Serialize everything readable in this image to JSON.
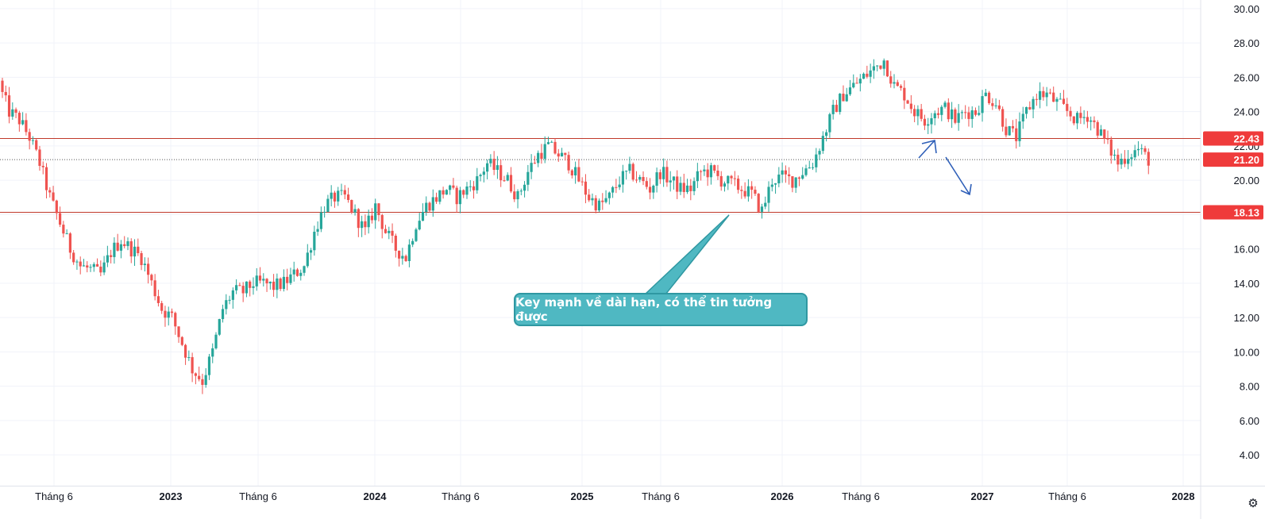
{
  "chart_data": {
    "type": "candlestick",
    "y_axis": {
      "ticks": [
        "4.00",
        "6.00",
        "8.00",
        "10.00",
        "12.00",
        "14.00",
        "16.00",
        "18.00",
        "20.00",
        "22.00",
        "24.00",
        "26.00",
        "28.00",
        "30.00"
      ],
      "range": [
        2.2,
        30.5
      ]
    },
    "x_axis": {
      "ticks": [
        {
          "label": "Tháng 6",
          "bold": false
        },
        {
          "label": "2023",
          "bold": true
        },
        {
          "label": "Tháng 6",
          "bold": false
        },
        {
          "label": "2024",
          "bold": true
        },
        {
          "label": "Tháng 6",
          "bold": false
        },
        {
          "label": "2025",
          "bold": true
        },
        {
          "label": "Tháng 6",
          "bold": false
        },
        {
          "label": "2026",
          "bold": true
        },
        {
          "label": "Tháng 6",
          "bold": false
        },
        {
          "label": "2027",
          "bold": true
        },
        {
          "label": "Tháng 6",
          "bold": false
        },
        {
          "label": "2028",
          "bold": true
        }
      ]
    },
    "price_levels": [
      {
        "value": 22.43,
        "label": "22.43",
        "style": "solid"
      },
      {
        "value": 18.13,
        "label": "18.13",
        "style": "solid"
      },
      {
        "value": 21.2,
        "label": "21.20",
        "style": "dotted",
        "current": true
      }
    ],
    "close_path": [
      25.5,
      24,
      23.5,
      22.5,
      21,
      19,
      17.5,
      16,
      15,
      14.8,
      14.5,
      15.8,
      16.5,
      16,
      15.5,
      14,
      12.5,
      12,
      10.5,
      9,
      8.3,
      10,
      12.5,
      13.5,
      13.5,
      14,
      14,
      13.8,
      14,
      14.5,
      15,
      17,
      18.5,
      19,
      19,
      18,
      17,
      18.5,
      17,
      16,
      15.5,
      17.5,
      18.5,
      19,
      19.5,
      19,
      19.5,
      20,
      21,
      20.5,
      20,
      19,
      20.5,
      21.5,
      22,
      21.5,
      21,
      20,
      19,
      18.5,
      19,
      20,
      20.5,
      20,
      19.5,
      20.5,
      20,
      19.5,
      19.5,
      20.5,
      20.5,
      20,
      19.8,
      19.5,
      19.2,
      18.2,
      20,
      20.2,
      20,
      20.5,
      21,
      22.5,
      24,
      25,
      25.5,
      26,
      26.5,
      27,
      25.5,
      25,
      24,
      23.5,
      24,
      24.2,
      23.5,
      24,
      24,
      25,
      24.5,
      23,
      22.5,
      24,
      25,
      25,
      24.5,
      24,
      23.5,
      23.8,
      23,
      22,
      21,
      21.5,
      21.8,
      21.2
    ],
    "colors": {
      "up": "#26a69a",
      "down": "#ef5350"
    },
    "grid": true,
    "annotations": [
      {
        "type": "callout",
        "text": "Key mạnh về dài hạn, có thể tin tưởng được"
      },
      {
        "type": "arrow",
        "direction": "up"
      },
      {
        "type": "arrow",
        "direction": "down"
      }
    ]
  },
  "icons": {
    "settings": "settings-icon"
  }
}
